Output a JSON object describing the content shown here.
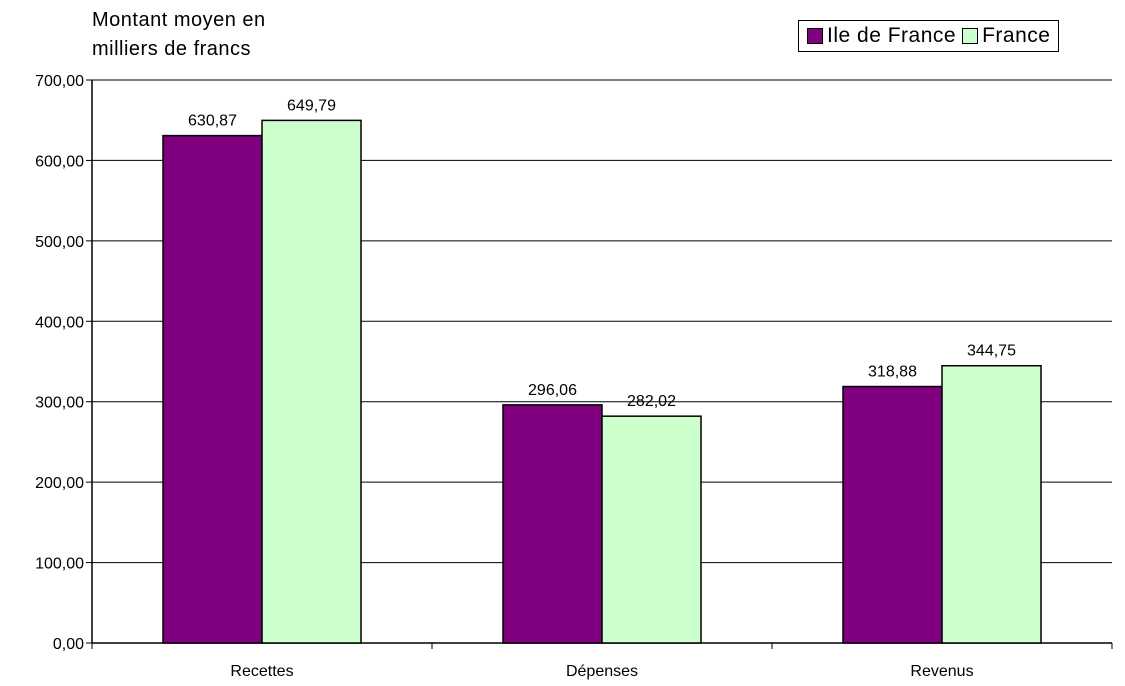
{
  "chart_data": {
    "type": "bar",
    "ylabel": [
      "Montant moyen en",
      "milliers de francs"
    ],
    "xlabel": "",
    "categories": [
      "Recettes",
      "Dépenses",
      "Revenus"
    ],
    "series": [
      {
        "name": "Ile de France",
        "color": "#800080",
        "values": [
          630.87,
          296.06,
          318.88
        ],
        "labels": [
          "630,87",
          "296,06",
          "318,88"
        ]
      },
      {
        "name": "France",
        "color": "#ccffcc",
        "values": [
          649.79,
          282.02,
          344.75
        ],
        "labels": [
          "649,79",
          "282,02",
          "344,75"
        ]
      }
    ],
    "ylim": [
      0,
      700
    ],
    "yticks": [
      0,
      100,
      200,
      300,
      400,
      500,
      600,
      700
    ],
    "ytick_labels": [
      "0,00",
      "100,00",
      "200,00",
      "300,00",
      "400,00",
      "500,00",
      "600,00",
      "700,00"
    ],
    "grid": true,
    "legend_position": "top-right"
  }
}
